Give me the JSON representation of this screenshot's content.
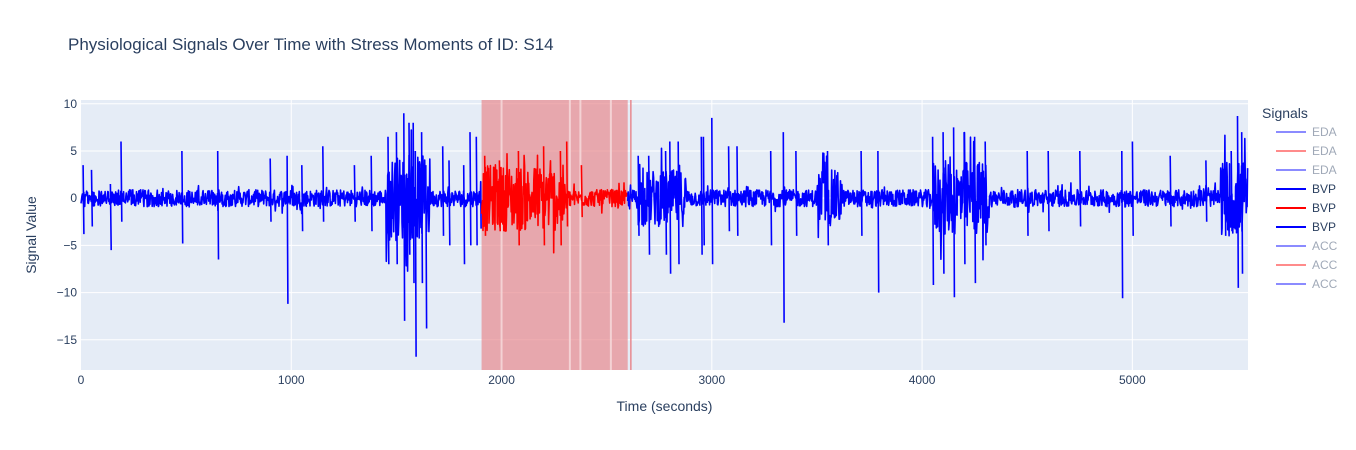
{
  "chart_data": {
    "type": "line",
    "title": "Physiological Signals Over Time with Stress Moments of ID: S14",
    "xlabel": "Time (seconds)",
    "ylabel": "Signal Value",
    "xlim": [
      0,
      5550
    ],
    "ylim": [
      -18.2,
      10.4
    ],
    "x_ticks": [
      0,
      1000,
      2000,
      3000,
      4000,
      5000
    ],
    "y_ticks": [
      10,
      5,
      0,
      -5,
      -10,
      -15
    ],
    "grid": true,
    "legend": {
      "title": "Signals",
      "placement": "right",
      "entries": [
        {
          "name": "EDA",
          "color": "#0000ff",
          "muted": true
        },
        {
          "name": "EDA",
          "color": "#ff0000",
          "muted": true
        },
        {
          "name": "EDA",
          "color": "#0000ff",
          "muted": true
        },
        {
          "name": "BVP",
          "color": "#0000ff",
          "muted": false
        },
        {
          "name": "BVP",
          "color": "#ff0000",
          "muted": false
        },
        {
          "name": "BVP",
          "color": "#0000ff",
          "muted": false
        },
        {
          "name": "ACC",
          "color": "#0000ff",
          "muted": true
        },
        {
          "name": "ACC",
          "color": "#ff0000",
          "muted": true
        },
        {
          "name": "ACC",
          "color": "#0000ff",
          "muted": true
        }
      ]
    },
    "stress_region": {
      "start": 1905,
      "end": 2600,
      "color": "#e88a8f"
    },
    "stress_region_gaps": [
      2000,
      2325,
      2375,
      2520
    ],
    "stress_line_after": 2615,
    "series": [
      {
        "name": "BVP",
        "color": "#0000ff",
        "range": [
          0,
          1905
        ]
      },
      {
        "name": "BVP",
        "color": "#ff0000",
        "range": [
          1905,
          2600
        ]
      },
      {
        "name": "BVP",
        "color": "#0000ff",
        "range": [
          2600,
          5550
        ]
      }
    ],
    "peaks": [
      [
        10,
        3.5,
        -3.8
      ],
      [
        50,
        3,
        -3
      ],
      [
        140,
        1.5,
        -5.5
      ],
      [
        190,
        6,
        -2.5
      ],
      [
        480,
        5,
        -4.8
      ],
      [
        650,
        5,
        -6.5
      ],
      [
        900,
        4.2,
        -2.5
      ],
      [
        980,
        4.5,
        -11.2
      ],
      [
        1050,
        3.5,
        -3.5
      ],
      [
        1150,
        5.5,
        -2.5
      ],
      [
        1300,
        3.5,
        -2.5
      ],
      [
        1380,
        4.5,
        -3.5
      ],
      [
        1460,
        6.5,
        -7
      ],
      [
        1500,
        7,
        -7
      ],
      [
        1535,
        9,
        -13
      ],
      [
        1560,
        8,
        -6
      ],
      [
        1580,
        8,
        -9
      ],
      [
        1590,
        5,
        -16.8
      ],
      [
        1620,
        7,
        -9
      ],
      [
        1640,
        3.5,
        -13.8
      ],
      [
        1720,
        5.5,
        -4
      ],
      [
        1750,
        4,
        -5
      ],
      [
        1820,
        3.5,
        -7
      ],
      [
        1850,
        7,
        -5
      ],
      [
        1880,
        6.5,
        -5
      ],
      [
        1920,
        4.5,
        -4
      ],
      [
        1990,
        4,
        -3.5
      ],
      [
        2080,
        5,
        -5
      ],
      [
        2200,
        5.5,
        -5
      ],
      [
        2280,
        5,
        -5
      ],
      [
        2310,
        6,
        -3
      ],
      [
        2380,
        3.5,
        -2
      ],
      [
        2650,
        4.5,
        -4
      ],
      [
        2700,
        4.5,
        -6
      ],
      [
        2780,
        5,
        -6
      ],
      [
        2800,
        6,
        -8
      ],
      [
        2840,
        6,
        -7
      ],
      [
        2950,
        6.5,
        -6
      ],
      [
        2960,
        6.5,
        -5
      ],
      [
        3000,
        8.5,
        -7
      ],
      [
        3080,
        5.5,
        -3.5
      ],
      [
        3120,
        5.5,
        -4
      ],
      [
        3280,
        5,
        -5
      ],
      [
        3340,
        7,
        -13.2
      ],
      [
        3400,
        5,
        -4
      ],
      [
        3550,
        5,
        -5
      ],
      [
        3710,
        5,
        -4
      ],
      [
        3790,
        5,
        -10
      ],
      [
        4050,
        6.5,
        -9.2
      ],
      [
        4100,
        7,
        -8
      ],
      [
        4150,
        7.5,
        -10.5
      ],
      [
        4200,
        7,
        -7
      ],
      [
        4250,
        6.5,
        -9
      ],
      [
        4300,
        6,
        -5
      ],
      [
        4500,
        5,
        -4
      ],
      [
        4600,
        5,
        -3.5
      ],
      [
        4750,
        5,
        -3
      ],
      [
        4950,
        5,
        -10.6
      ],
      [
        5000,
        6,
        -4
      ],
      [
        5180,
        4.5,
        -3
      ],
      [
        5350,
        4,
        -2.5
      ],
      [
        5440,
        6,
        -4
      ],
      [
        5470,
        5,
        -3.5
      ],
      [
        5500,
        8.7,
        -9.5
      ],
      [
        5520,
        7,
        -8
      ]
    ],
    "dense_regions": [
      [
        1450,
        1660,
        4.5
      ],
      [
        1900,
        2300,
        3.5
      ],
      [
        2640,
        2880,
        3
      ],
      [
        3500,
        3620,
        3
      ],
      [
        4050,
        4320,
        4
      ],
      [
        5420,
        5550,
        4
      ]
    ]
  }
}
